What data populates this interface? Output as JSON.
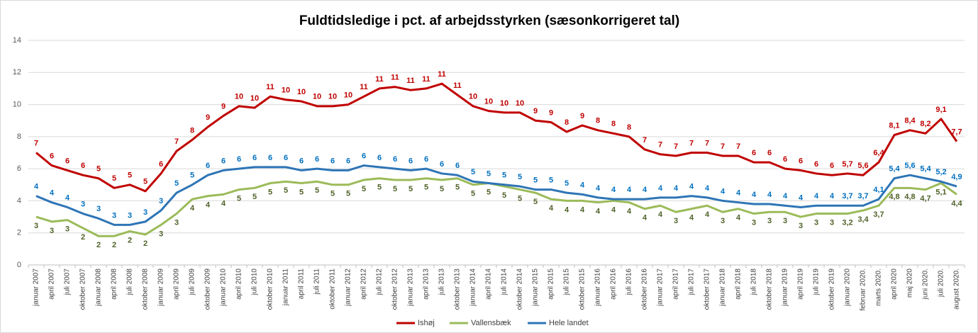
{
  "chart_data": {
    "type": "line",
    "title": "Fuldtidsledige i pct. af arbejdsstyrken (sæsonkorrigeret tal)",
    "categories": [
      "januar 2007",
      "april 2007",
      "juli 2007",
      "oktober 2007",
      "januar 2008",
      "april 2008",
      "juli 2008",
      "oktober 2008",
      "januar 2009",
      "april 2009",
      "juli 2009",
      "oktober 2009",
      "januar 2010",
      "april 2010",
      "juli 2010",
      "oktober 2010",
      "januar 2011",
      "april 2011",
      "juli 2011",
      "oktober 2011",
      "januar 2012",
      "april 2012",
      "juli 2012",
      "oktober 2012",
      "januar 2013",
      "april 2013",
      "juli 2013",
      "oktober 2013",
      "januar 2014",
      "april 2014",
      "juli 2014",
      "oktober 2014",
      "januar 2015",
      "april 2015",
      "juli 2015",
      "oktober 2015",
      "januar 2016",
      "april 2016",
      "juli 2016",
      "oktober 2016",
      "januar 2017",
      "april 2017",
      "juli 2017",
      "oktober 2017",
      "januar 2018",
      "april 2018",
      "juli 2018",
      "oktober 2018",
      "januar 2019",
      "april 2019",
      "juli 2019",
      "oktober 2019",
      "januar 2020",
      "februar 2020.",
      "marts 2020.",
      "april 2020",
      "maj 2020",
      "juni 2020.",
      "juli 2020.",
      "august 2020."
    ],
    "series": [
      {
        "name": "Ishøj",
        "color": "#c00000",
        "label_position": "above",
        "values": [
          7.0,
          6.2,
          5.9,
          5.6,
          5.4,
          4.8,
          5.0,
          4.6,
          5.7,
          7.1,
          7.8,
          8.6,
          9.3,
          9.9,
          9.8,
          10.5,
          10.3,
          10.2,
          9.9,
          9.9,
          10.0,
          10.5,
          11.0,
          11.1,
          10.9,
          11.0,
          11.3,
          10.6,
          9.9,
          9.6,
          9.5,
          9.5,
          9.0,
          8.9,
          8.3,
          8.7,
          8.4,
          8.2,
          8.0,
          7.2,
          6.9,
          6.8,
          7.0,
          7.0,
          6.8,
          6.8,
          6.4,
          6.4,
          6.0,
          5.9,
          5.7,
          5.6,
          5.7,
          5.6,
          6.4,
          8.1,
          8.4,
          8.2,
          9.1,
          7.7
        ],
        "value_labels": [
          "7",
          "6",
          "6",
          "6",
          "5",
          "5",
          "5",
          "5",
          "6",
          "7",
          "8",
          "9",
          "9",
          "10",
          "10",
          "11",
          "10",
          "10",
          "10",
          "10",
          "10",
          "11",
          "11",
          "11",
          "11",
          "11",
          "11",
          "11",
          "10",
          "10",
          "10",
          "10",
          "9",
          "9",
          "8",
          "9",
          "8",
          "8",
          "8",
          "7",
          "7",
          "7",
          "7",
          "7",
          "7",
          "7",
          "6",
          "6",
          "6",
          "6",
          "6",
          "6",
          "5,7",
          "5,6",
          "6,4",
          "8,1",
          "8,4",
          "8,2",
          "9,1",
          "7,7"
        ]
      },
      {
        "name": "Vallensbæk",
        "color": "#9bbb59",
        "label_position": "below",
        "values": [
          3.0,
          2.7,
          2.8,
          2.3,
          1.8,
          1.8,
          2.1,
          1.9,
          2.5,
          3.2,
          4.1,
          4.3,
          4.4,
          4.7,
          4.8,
          5.1,
          5.2,
          5.1,
          5.2,
          5.0,
          5.0,
          5.3,
          5.4,
          5.3,
          5.3,
          5.4,
          5.3,
          5.4,
          5.0,
          5.1,
          4.9,
          4.7,
          4.5,
          4.1,
          4.0,
          4.0,
          3.9,
          4.0,
          3.9,
          3.5,
          3.7,
          3.3,
          3.5,
          3.7,
          3.3,
          3.5,
          3.2,
          3.3,
          3.3,
          3.0,
          3.2,
          3.2,
          3.2,
          3.4,
          3.7,
          4.8,
          4.8,
          4.7,
          5.1,
          4.4
        ],
        "value_labels": [
          "3",
          "3",
          "3",
          "2",
          "2",
          "2",
          "2",
          "2",
          "3",
          "3",
          "4",
          "4",
          "4",
          "5",
          "5",
          "5",
          "5",
          "5",
          "5",
          "5",
          "5",
          "5",
          "5",
          "5",
          "5",
          "5",
          "5",
          "5",
          "5",
          "5",
          "5",
          "5",
          "5",
          "4",
          "4",
          "4",
          "4",
          "4",
          "4",
          "4",
          "4",
          "3",
          "4",
          "4",
          "3",
          "4",
          "3",
          "3",
          "3",
          "3",
          "3",
          "3",
          "3,2",
          "3,4",
          "3,7",
          "4,8",
          "4,8",
          "4,7",
          "5,1",
          "4,4"
        ]
      },
      {
        "name": "Hele landet",
        "color": "#2e75b6",
        "label_position": "above",
        "values": [
          4.3,
          3.9,
          3.6,
          3.2,
          2.9,
          2.5,
          2.5,
          2.7,
          3.4,
          4.5,
          5.0,
          5.6,
          5.9,
          6.0,
          6.1,
          6.1,
          6.1,
          5.9,
          6.0,
          5.9,
          5.9,
          6.2,
          6.1,
          6.0,
          5.9,
          6.0,
          5.7,
          5.6,
          5.2,
          5.1,
          5.0,
          4.9,
          4.7,
          4.7,
          4.5,
          4.4,
          4.2,
          4.1,
          4.1,
          4.1,
          4.2,
          4.2,
          4.3,
          4.2,
          4.0,
          3.9,
          3.8,
          3.8,
          3.7,
          3.6,
          3.7,
          3.7,
          3.7,
          3.7,
          4.1,
          5.4,
          5.6,
          5.4,
          5.2,
          4.9
        ],
        "value_labels": [
          "4",
          "4",
          "4",
          "3",
          "3",
          "3",
          "3",
          "3",
          "3",
          "5",
          "5",
          "6",
          "6",
          "6",
          "6",
          "6",
          "6",
          "6",
          "6",
          "6",
          "6",
          "6",
          "6",
          "6",
          "6",
          "6",
          "6",
          "6",
          "5",
          "5",
          "5",
          "5",
          "5",
          "5",
          "5",
          "4",
          "4",
          "4",
          "4",
          "4",
          "4",
          "4",
          "4",
          "4",
          "4",
          "4",
          "4",
          "4",
          "4",
          "4",
          "4",
          "4",
          "3,7",
          "3,7",
          "4,1",
          "5,4",
          "5,6",
          "5,4",
          "5,2",
          "4,9"
        ]
      }
    ],
    "ylim": [
      0,
      14
    ],
    "yticks": [
      0,
      2,
      4,
      6,
      8,
      10,
      12,
      14
    ],
    "grid": true,
    "legend": "bottom"
  }
}
